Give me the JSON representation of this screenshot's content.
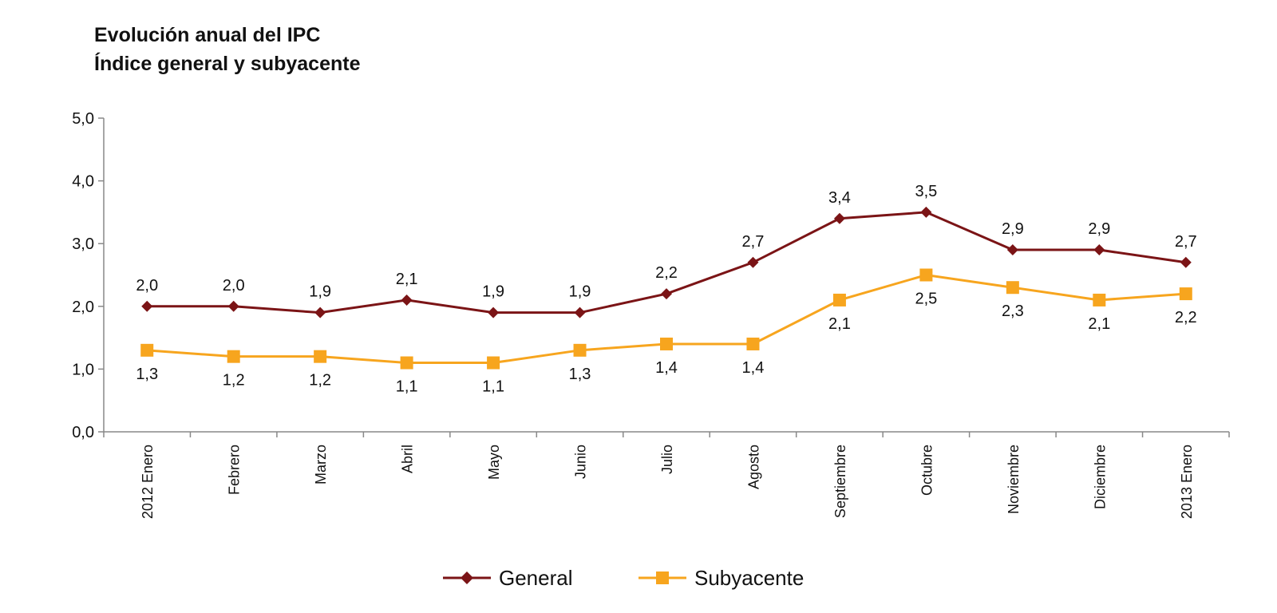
{
  "chart_data": {
    "type": "line",
    "title": "Evolución anual del IPC",
    "subtitle": "Índice general y subyacente",
    "categories": [
      "2012 Enero",
      "Febrero",
      "Marzo",
      "Abril",
      "Mayo",
      "Junio",
      "Julio",
      "Agosto",
      "Septiembre",
      "Octubre",
      "Noviembre",
      "Diciembre",
      "2013 Enero"
    ],
    "series": [
      {
        "name": "General",
        "color": "#7b1416",
        "marker": "diamond",
        "values": [
          2.0,
          2.0,
          1.9,
          2.1,
          1.9,
          1.9,
          2.2,
          2.7,
          3.4,
          3.5,
          2.9,
          2.9,
          2.7
        ],
        "labels": [
          "2,0",
          "2,0",
          "1,9",
          "2,1",
          "1,9",
          "1,9",
          "2,2",
          "2,7",
          "3,4",
          "3,5",
          "2,9",
          "2,9",
          "2,7"
        ]
      },
      {
        "name": "Subyacente",
        "color": "#f7a51e",
        "marker": "square",
        "values": [
          1.3,
          1.2,
          1.2,
          1.1,
          1.1,
          1.3,
          1.4,
          1.4,
          2.1,
          2.5,
          2.3,
          2.1,
          2.2
        ],
        "labels": [
          "1,3",
          "1,2",
          "1,2",
          "1,1",
          "1,1",
          "1,3",
          "1,4",
          "1,4",
          "2,1",
          "2,5",
          "2,3",
          "2,1",
          "2,2"
        ]
      }
    ],
    "y_ticks": [
      0,
      1,
      2,
      3,
      4,
      5
    ],
    "y_tick_labels": [
      "0,0",
      "1,0",
      "2,0",
      "3,0",
      "4,0",
      "5,0"
    ],
    "ylim": [
      0,
      5
    ],
    "xlabel": "",
    "ylabel": "",
    "grid": false,
    "legend_position": "bottom-center"
  }
}
